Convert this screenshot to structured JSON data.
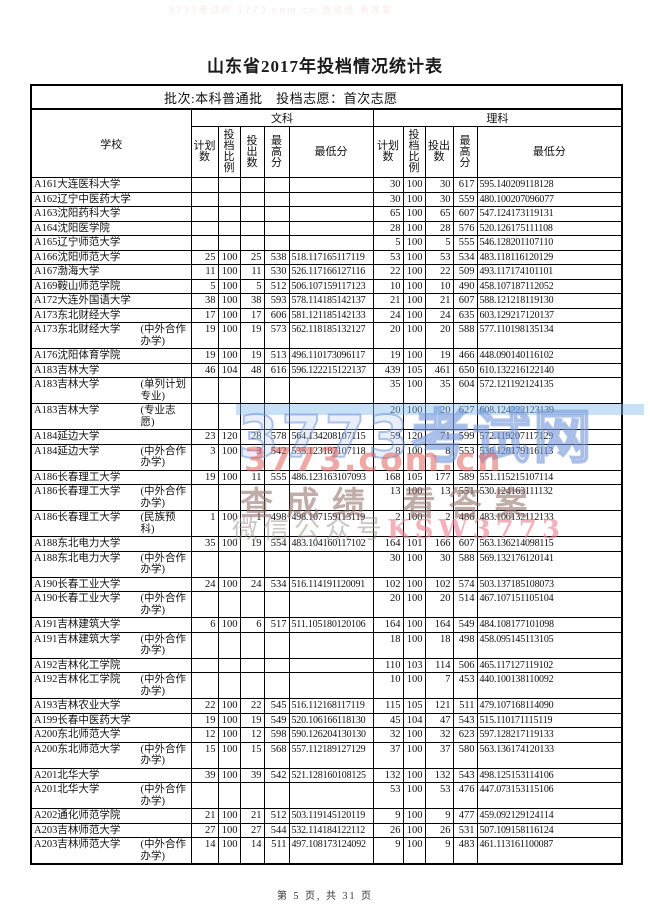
{
  "title": "山东省2017年投档情况统计表",
  "subtitle": "批次:本科普通批　投档志愿：首次志愿",
  "header": {
    "school": "学校",
    "group_wenke": "文科",
    "group_like": "理科",
    "cols": [
      "计划数",
      "投档比例",
      "投出数",
      "最高分",
      "最低分"
    ]
  },
  "rows": [
    {
      "school": "A161大连医科大学",
      "note": "",
      "wk": [
        "",
        "",
        "",
        "",
        ""
      ],
      "lk": [
        "30",
        "100",
        "30",
        "617",
        "595.140209118128"
      ]
    },
    {
      "school": "A162辽宁中医药大学",
      "note": "",
      "wk": [
        "",
        "",
        "",
        "",
        ""
      ],
      "lk": [
        "30",
        "100",
        "30",
        "559",
        "480.100207096077"
      ]
    },
    {
      "school": "A163沈阳药科大学",
      "note": "",
      "wk": [
        "",
        "",
        "",
        "",
        ""
      ],
      "lk": [
        "65",
        "100",
        "65",
        "607",
        "547.124173119131"
      ]
    },
    {
      "school": "A164沈阳医学院",
      "note": "",
      "wk": [
        "",
        "",
        "",
        "",
        ""
      ],
      "lk": [
        "28",
        "100",
        "28",
        "576",
        "520.126175111108"
      ]
    },
    {
      "school": "A165辽宁师范大学",
      "note": "",
      "wk": [
        "",
        "",
        "",
        "",
        ""
      ],
      "lk": [
        "5",
        "100",
        "5",
        "555",
        "546.128201107110"
      ]
    },
    {
      "school": "A166沈阳师范大学",
      "note": "",
      "wk": [
        "25",
        "100",
        "25",
        "538",
        "518.117165117119"
      ],
      "lk": [
        "53",
        "100",
        "53",
        "534",
        "483.118116120129"
      ]
    },
    {
      "school": "A167渤海大学",
      "note": "",
      "wk": [
        "11",
        "100",
        "11",
        "530",
        "526.117166127116"
      ],
      "lk": [
        "22",
        "100",
        "22",
        "509",
        "493.117174101101"
      ]
    },
    {
      "school": "A169鞍山师范学院",
      "note": "",
      "wk": [
        "5",
        "100",
        "5",
        "512",
        "506.107159117123"
      ],
      "lk": [
        "10",
        "100",
        "10",
        "490",
        "458.107187112052"
      ]
    },
    {
      "school": "A172大连外国语大学",
      "note": "",
      "wk": [
        "38",
        "100",
        "38",
        "593",
        "578.114185142137"
      ],
      "lk": [
        "21",
        "100",
        "21",
        "607",
        "588.121218119130"
      ]
    },
    {
      "school": "A173东北财经大学",
      "note": "",
      "wk": [
        "17",
        "100",
        "17",
        "606",
        "581.121185142133"
      ],
      "lk": [
        "24",
        "100",
        "24",
        "635",
        "603.129217120137"
      ]
    },
    {
      "school": "A173东北财经大学",
      "note": "(中外合作办学)",
      "wk": [
        "19",
        "100",
        "19",
        "573",
        "562.118185132127"
      ],
      "lk": [
        "20",
        "100",
        "20",
        "588",
        "577.110198135134"
      ]
    },
    {
      "school": "A176沈阳体育学院",
      "note": "",
      "wk": [
        "19",
        "100",
        "19",
        "513",
        "496.110173096117"
      ],
      "lk": [
        "19",
        "100",
        "19",
        "466",
        "448.090140116102"
      ]
    },
    {
      "school": "A183吉林大学",
      "note": "",
      "wk": [
        "46",
        "104",
        "48",
        "616",
        "596.122215122137"
      ],
      "lk": [
        "439",
        "105",
        "461",
        "650",
        "610.132216122140"
      ]
    },
    {
      "school": "A183吉林大学",
      "note": "(单列计划专业)",
      "wk": [
        "",
        "",
        "",
        "",
        ""
      ],
      "lk": [
        "35",
        "100",
        "35",
        "604",
        "572.121192124135"
      ]
    },
    {
      "school": "A183吉林大学",
      "note": "(专业志愿)",
      "wk": [
        "",
        "",
        "",
        "",
        ""
      ],
      "lk": [
        "20",
        "100",
        "20",
        "627",
        "608.124222123139"
      ]
    },
    {
      "school": "A184延边大学",
      "note": "",
      "wk": [
        "23",
        "120",
        "28",
        "578",
        "564.134208107115"
      ],
      "lk": [
        "59",
        "120",
        "71",
        "599",
        "572.119207117129"
      ]
    },
    {
      "school": "A184延边大学",
      "note": "(中外合作办学)",
      "wk": [
        "3",
        "100",
        "3",
        "542",
        "535.123187107118"
      ],
      "lk": [
        "8",
        "100",
        "8",
        "553",
        "536.128179116113"
      ]
    },
    {
      "school": "A186长春理工大学",
      "note": "",
      "wk": [
        "19",
        "100",
        "11",
        "555",
        "486.123163107093"
      ],
      "lk": [
        "168",
        "105",
        "177",
        "589",
        "551.115215107114"
      ]
    },
    {
      "school": "A186长春理工大学",
      "note": "(中外合作办学)",
      "wk": [
        "",
        "",
        "",
        "",
        ""
      ],
      "lk": [
        "13",
        "100",
        "13",
        "551",
        "530.124163111132"
      ]
    },
    {
      "school": "A186长春理工大学",
      "note": "(民族预科)",
      "wk": [
        "1",
        "100",
        "1",
        "498",
        "498.107159113119"
      ],
      "lk": [
        "2",
        "100",
        "2",
        "486",
        "483.106132112133"
      ]
    },
    {
      "school": "A188东北电力大学",
      "note": "",
      "wk": [
        "35",
        "100",
        "19",
        "554",
        "483.104160117102"
      ],
      "lk": [
        "164",
        "101",
        "166",
        "607",
        "563.136214098115"
      ]
    },
    {
      "school": "A188东北电力大学",
      "note": "(中外合作办学)",
      "wk": [
        "",
        "",
        "",
        "",
        ""
      ],
      "lk": [
        "30",
        "100",
        "30",
        "588",
        "569.132176120141"
      ]
    },
    {
      "school": "A190长春工业大学",
      "note": "",
      "wk": [
        "24",
        "100",
        "24",
        "534",
        "516.114191120091"
      ],
      "lk": [
        "102",
        "100",
        "102",
        "574",
        "503.137185108073"
      ]
    },
    {
      "school": "A190长春工业大学",
      "note": "(中外合作办学)",
      "wk": [
        "",
        "",
        "",
        "",
        ""
      ],
      "lk": [
        "20",
        "100",
        "20",
        "514",
        "467.107151105104"
      ]
    },
    {
      "school": "A191吉林建筑大学",
      "note": "",
      "wk": [
        "6",
        "100",
        "6",
        "517",
        "511.105180120106"
      ],
      "lk": [
        "164",
        "100",
        "164",
        "549",
        "484.108177101098"
      ]
    },
    {
      "school": "A191吉林建筑大学",
      "note": "(中外合作办学)",
      "wk": [
        "",
        "",
        "",
        "",
        ""
      ],
      "lk": [
        "18",
        "100",
        "18",
        "498",
        "458.095145113105"
      ]
    },
    {
      "school": "A192吉林化工学院",
      "note": "",
      "wk": [
        "",
        "",
        "",
        "",
        ""
      ],
      "lk": [
        "110",
        "103",
        "114",
        "506",
        "465.117127119102"
      ]
    },
    {
      "school": "A192吉林化工学院",
      "note": "(中外合作办学)",
      "wk": [
        "",
        "",
        "",
        "",
        ""
      ],
      "lk": [
        "10",
        "100",
        "7",
        "453",
        "440.100138110092"
      ]
    },
    {
      "school": "A193吉林农业大学",
      "note": "",
      "wk": [
        "22",
        "100",
        "22",
        "545",
        "516.112168117119"
      ],
      "lk": [
        "115",
        "105",
        "121",
        "511",
        "479.107168114090"
      ]
    },
    {
      "school": "A199长春中医药大学",
      "note": "",
      "wk": [
        "19",
        "100",
        "19",
        "549",
        "520.106166118130"
      ],
      "lk": [
        "45",
        "104",
        "47",
        "543",
        "515.110171115119"
      ]
    },
    {
      "school": "A200东北师范大学",
      "note": "",
      "wk": [
        "12",
        "100",
        "12",
        "598",
        "590.126204130130"
      ],
      "lk": [
        "32",
        "100",
        "32",
        "623",
        "597.128217119133"
      ]
    },
    {
      "school": "A200东北师范大学",
      "note": "(中外合作办学)",
      "wk": [
        "15",
        "100",
        "15",
        "568",
        "557.112189127129"
      ],
      "lk": [
        "37",
        "100",
        "37",
        "580",
        "563.136174120133"
      ]
    },
    {
      "school": "A201北华大学",
      "note": "",
      "wk": [
        "39",
        "100",
        "39",
        "542",
        "521.128160108125"
      ],
      "lk": [
        "132",
        "100",
        "132",
        "543",
        "498.125153114106"
      ]
    },
    {
      "school": "A201北华大学",
      "note": "(中外合作办学)",
      "wk": [
        "",
        "",
        "",
        "",
        ""
      ],
      "lk": [
        "53",
        "100",
        "53",
        "476",
        "447.073153115106"
      ]
    },
    {
      "school": "A202通化师范学院",
      "note": "",
      "wk": [
        "21",
        "100",
        "21",
        "512",
        "503.119145120119"
      ],
      "lk": [
        "9",
        "100",
        "9",
        "477",
        "459.092129124114"
      ]
    },
    {
      "school": "A203吉林师范大学",
      "note": "",
      "wk": [
        "27",
        "100",
        "27",
        "544",
        "532.114184122112"
      ],
      "lk": [
        "26",
        "100",
        "26",
        "531",
        "507.109158116124"
      ]
    },
    {
      "school": "A203吉林师范大学",
      "note": "(中外合作办学)",
      "wk": [
        "14",
        "100",
        "14",
        "511",
        "497.108173124092"
      ],
      "lk": [
        "9",
        "100",
        "9",
        "483",
        "461.113161100087"
      ]
    }
  ],
  "watermarks": {
    "top_faint": "3773考试网 3773.com.cn 查成绩 看答案",
    "site_name": "3773考试网",
    "site_url": "3773.com.cn",
    "slogan": "查成绩 看答案",
    "wechat_label": "微信公众号",
    "wechat_code": "KSW3773"
  },
  "footer": "第 5 页, 共 31 页"
}
